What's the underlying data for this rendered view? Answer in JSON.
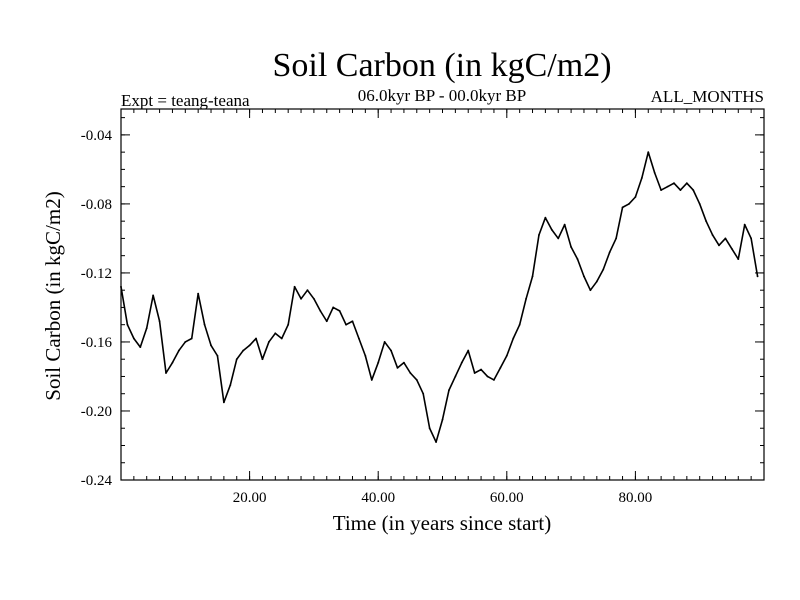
{
  "chart_data": {
    "type": "line",
    "title": "Soil Carbon (in kgC/m2)",
    "subtitle": "06.0kyr BP - 00.0kyr BP",
    "left_annotation": "Expt = teang-teana",
    "right_annotation": "ALL_MONTHS",
    "xlabel": "Time (in years since start)",
    "ylabel": "Soil Carbon (in kgC/m2)",
    "xlim": [
      0,
      100
    ],
    "ylim": [
      -0.24,
      -0.025
    ],
    "xticks": [
      20,
      40,
      60,
      80
    ],
    "xtick_labels": [
      "20.00",
      "40.00",
      "60.00",
      "80.00"
    ],
    "yticks": [
      -0.04,
      -0.08,
      -0.12,
      -0.16,
      -0.2,
      -0.24
    ],
    "ytick_labels": [
      "-0.04",
      "-0.08",
      "-0.12",
      "-0.16",
      "-0.20",
      "-0.24"
    ],
    "x_minor_step": 2,
    "y_minor_step": 0.01,
    "grid": false,
    "series": [
      {
        "name": "Soil Carbon",
        "color": "#000000",
        "x": [
          0,
          1,
          2,
          3,
          4,
          5,
          6,
          7,
          8,
          9,
          10,
          11,
          12,
          13,
          14,
          15,
          16,
          17,
          18,
          19,
          20,
          21,
          22,
          23,
          24,
          25,
          26,
          27,
          28,
          29,
          30,
          31,
          32,
          33,
          34,
          35,
          36,
          37,
          38,
          39,
          40,
          41,
          42,
          43,
          44,
          45,
          46,
          47,
          48,
          49,
          50,
          51,
          52,
          53,
          54,
          55,
          56,
          57,
          58,
          59,
          60,
          61,
          62,
          63,
          64,
          65,
          66,
          67,
          68,
          69,
          70,
          71,
          72,
          73,
          74,
          75,
          76,
          77,
          78,
          79,
          80,
          81,
          82,
          83,
          84,
          85,
          86,
          87,
          88,
          89,
          90,
          91,
          92,
          93,
          94,
          95,
          96,
          97,
          98,
          99
        ],
        "values": [
          -0.128,
          -0.15,
          -0.158,
          -0.163,
          -0.152,
          -0.133,
          -0.148,
          -0.178,
          -0.172,
          -0.165,
          -0.16,
          -0.158,
          -0.132,
          -0.15,
          -0.162,
          -0.168,
          -0.195,
          -0.185,
          -0.17,
          -0.165,
          -0.162,
          -0.158,
          -0.17,
          -0.16,
          -0.155,
          -0.158,
          -0.15,
          -0.128,
          -0.135,
          -0.13,
          -0.135,
          -0.142,
          -0.148,
          -0.14,
          -0.142,
          -0.15,
          -0.148,
          -0.158,
          -0.168,
          -0.182,
          -0.172,
          -0.16,
          -0.165,
          -0.175,
          -0.172,
          -0.178,
          -0.182,
          -0.19,
          -0.21,
          -0.218,
          -0.205,
          -0.188,
          -0.18,
          -0.172,
          -0.165,
          -0.178,
          -0.176,
          -0.18,
          -0.182,
          -0.175,
          -0.168,
          -0.158,
          -0.15,
          -0.135,
          -0.122,
          -0.098,
          -0.088,
          -0.095,
          -0.1,
          -0.092,
          -0.105,
          -0.112,
          -0.122,
          -0.13,
          -0.125,
          -0.118,
          -0.108,
          -0.1,
          -0.082,
          -0.08,
          -0.076,
          -0.065,
          -0.05,
          -0.062,
          -0.072,
          -0.07,
          -0.068,
          -0.072,
          -0.068,
          -0.072,
          -0.08,
          -0.09,
          -0.098,
          -0.104,
          -0.1,
          -0.106,
          -0.112,
          -0.092,
          -0.1,
          -0.122
        ]
      }
    ]
  }
}
